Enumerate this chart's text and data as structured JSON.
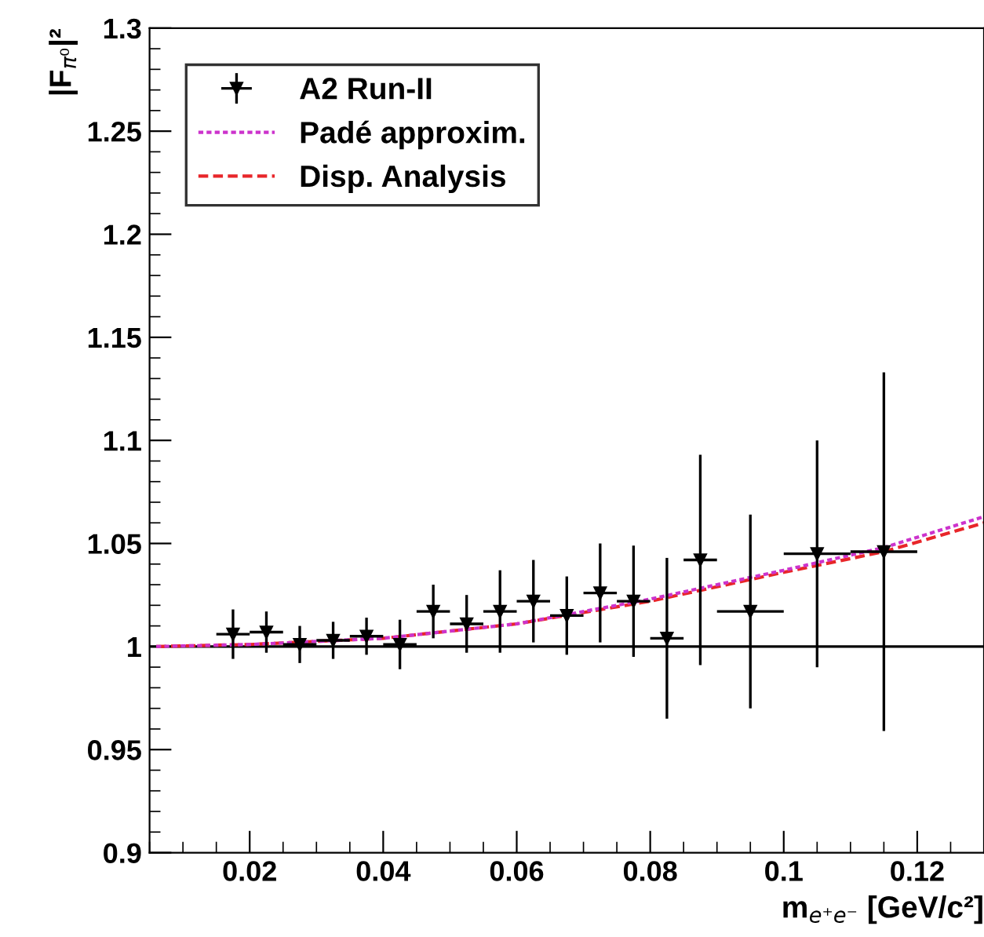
{
  "chart_data": {
    "type": "scatter",
    "xlabel": "m$_{e⁺e⁻}$ [GeV/c²]",
    "ylabel": "|F$_{π⁰}$|²",
    "xlim": [
      0.005,
      0.13
    ],
    "ylim": [
      0.9,
      1.3
    ],
    "xticks": [
      0.02,
      0.04,
      0.06,
      0.08,
      0.1,
      0.12
    ],
    "yticks": [
      0.9,
      0.95,
      1,
      1.05,
      1.1,
      1.15,
      1.2,
      1.25,
      1.3
    ],
    "grid": false,
    "legend": "top left",
    "ref_lines": [
      {
        "axis": "y",
        "value": 1,
        "color": "#000000"
      }
    ],
    "series": [
      {
        "name": "A2 Run-II",
        "color": "#000000",
        "marker": "triangle",
        "x": [
          0.0175,
          0.0225,
          0.0275,
          0.0325,
          0.0375,
          0.0425,
          0.0475,
          0.0525,
          0.0575,
          0.0625,
          0.0675,
          0.0725,
          0.0775,
          0.0825,
          0.0875,
          0.095,
          0.105,
          0.115
        ],
        "values": [
          1.006,
          1.007,
          1.001,
          1.003,
          1.005,
          1.001,
          1.017,
          1.011,
          1.017,
          1.022,
          1.015,
          1.026,
          1.022,
          1.004,
          1.042,
          1.017,
          1.045,
          1.046
        ],
        "errors": [
          0.012,
          0.01,
          0.009,
          0.009,
          0.009,
          0.012,
          0.013,
          0.014,
          0.02,
          0.02,
          0.019,
          0.024,
          0.027,
          0.039,
          0.051,
          0.047,
          0.055,
          0.087
        ],
        "xerrors": [
          0.0025,
          0.0025,
          0.0025,
          0.0025,
          0.0025,
          0.0025,
          0.0025,
          0.0025,
          0.0025,
          0.0025,
          0.0025,
          0.0025,
          0.0025,
          0.0025,
          0.0025,
          0.005,
          0.005,
          0.005
        ]
      },
      {
        "name": "Padé approxim.",
        "type": "line",
        "color": "#cc33cc",
        "line_style": "dotted",
        "x": [
          0.006,
          0.02,
          0.04,
          0.06,
          0.08,
          0.1,
          0.115,
          0.13
        ],
        "values": [
          1.0,
          1.001,
          1.004,
          1.011,
          1.023,
          1.037,
          1.048,
          1.063
        ]
      },
      {
        "name": "Disp. Analysis",
        "type": "line",
        "color": "#e8262a",
        "line_style": "dashed",
        "x": [
          0.006,
          0.02,
          0.04,
          0.06,
          0.08,
          0.1,
          0.115,
          0.13
        ],
        "values": [
          1.0,
          1.001,
          1.004,
          1.011,
          1.022,
          1.036,
          1.046,
          1.06
        ]
      }
    ]
  }
}
